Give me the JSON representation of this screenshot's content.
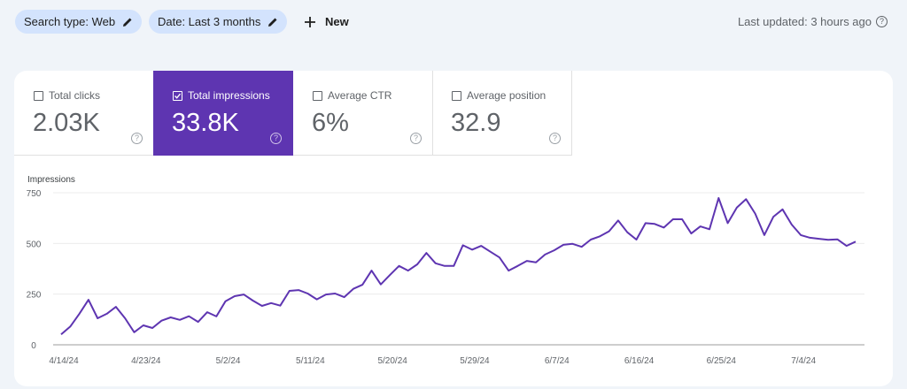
{
  "filters": [
    {
      "label": "Search type: Web",
      "icon": "pencil-icon"
    },
    {
      "label": "Date: Last 3 months",
      "icon": "pencil-icon"
    }
  ],
  "new_button": {
    "label": "New",
    "icon": "plus-icon"
  },
  "last_updated": "Last updated: 3 hours ago",
  "metrics": [
    {
      "label": "Total clicks",
      "value": "2.03K",
      "checked": false
    },
    {
      "label": "Total impressions",
      "value": "33.8K",
      "checked": true
    },
    {
      "label": "Average CTR",
      "value": "6%",
      "checked": false
    },
    {
      "label": "Average position",
      "value": "32.9",
      "checked": false
    }
  ],
  "colors": {
    "accent": "#5e35b1",
    "chip": "#d3e3fd",
    "line": "#5e35b1",
    "background": "#f0f4f9"
  },
  "chart_data": {
    "type": "line",
    "ylabel": "Impressions",
    "ylim": [
      0,
      750
    ],
    "yticks": [
      "0",
      "250",
      "500",
      "750"
    ],
    "ytick_values": [
      0,
      250,
      500,
      750
    ],
    "xticks": [
      "4/14/24",
      "4/23/24",
      "5/2/24",
      "5/11/24",
      "5/20/24",
      "5/29/24",
      "6/7/24",
      "6/16/24",
      "6/25/24",
      "7/4/24"
    ],
    "grid": true,
    "series": [
      {
        "x": [
          "4/14/24",
          "4/15/24",
          "4/16/24",
          "4/17/24",
          "4/18/24",
          "4/19/24",
          "4/20/24",
          "4/21/24",
          "4/22/24",
          "4/23/24",
          "4/24/24",
          "4/25/24",
          "4/26/24",
          "4/27/24",
          "4/28/24",
          "4/29/24",
          "4/30/24",
          "5/1/24",
          "5/2/24",
          "5/3/24",
          "5/4/24",
          "5/5/24",
          "5/6/24",
          "5/7/24",
          "5/8/24",
          "5/9/24",
          "5/10/24",
          "5/11/24",
          "5/12/24",
          "5/13/24",
          "5/14/24",
          "5/15/24",
          "5/16/24",
          "5/17/24",
          "5/18/24",
          "5/19/24",
          "5/20/24",
          "5/21/24",
          "5/22/24",
          "5/23/24",
          "5/24/24",
          "5/25/24",
          "5/26/24",
          "5/27/24",
          "5/28/24",
          "5/29/24",
          "5/30/24",
          "5/31/24",
          "6/1/24",
          "6/2/24",
          "6/3/24",
          "6/4/24",
          "6/5/24",
          "6/6/24",
          "6/7/24",
          "6/8/24",
          "6/9/24",
          "6/10/24",
          "6/11/24",
          "6/12/24",
          "6/13/24",
          "6/14/24",
          "6/15/24",
          "6/16/24",
          "6/17/24",
          "6/18/24",
          "6/19/24",
          "6/20/24",
          "6/21/24",
          "6/22/24",
          "6/23/24",
          "6/24/24",
          "6/25/24",
          "6/26/24",
          "6/27/24",
          "6/28/24",
          "6/29/24",
          "6/30/24",
          "7/1/24",
          "7/2/24",
          "7/3/24",
          "7/4/24",
          "7/5/24",
          "7/6/24",
          "7/7/24",
          "7/8/24",
          "7/9/24",
          "7/10/24"
        ],
        "values": [
          51,
          90,
          153,
          222,
          131,
          153,
          187,
          131,
          62,
          96,
          83,
          119,
          135,
          123,
          141,
          113,
          161,
          140,
          215,
          240,
          248,
          218,
          192,
          206,
          193,
          266,
          270,
          253,
          224,
          248,
          253,
          235,
          276,
          296,
          366,
          298,
          344,
          389,
          366,
          397,
          453,
          402,
          389,
          389,
          491,
          469,
          488,
          459,
          431,
          366,
          389,
          414,
          407,
          445,
          466,
          493,
          498,
          483,
          519,
          535,
          560,
          613,
          555,
          519,
          600,
          596,
          578,
          619,
          619,
          549,
          584,
          570,
          724,
          600,
          677,
          718,
          647,
          541,
          632,
          668,
          593,
          541,
          528,
          523,
          518,
          520,
          488,
          509
        ]
      }
    ]
  }
}
